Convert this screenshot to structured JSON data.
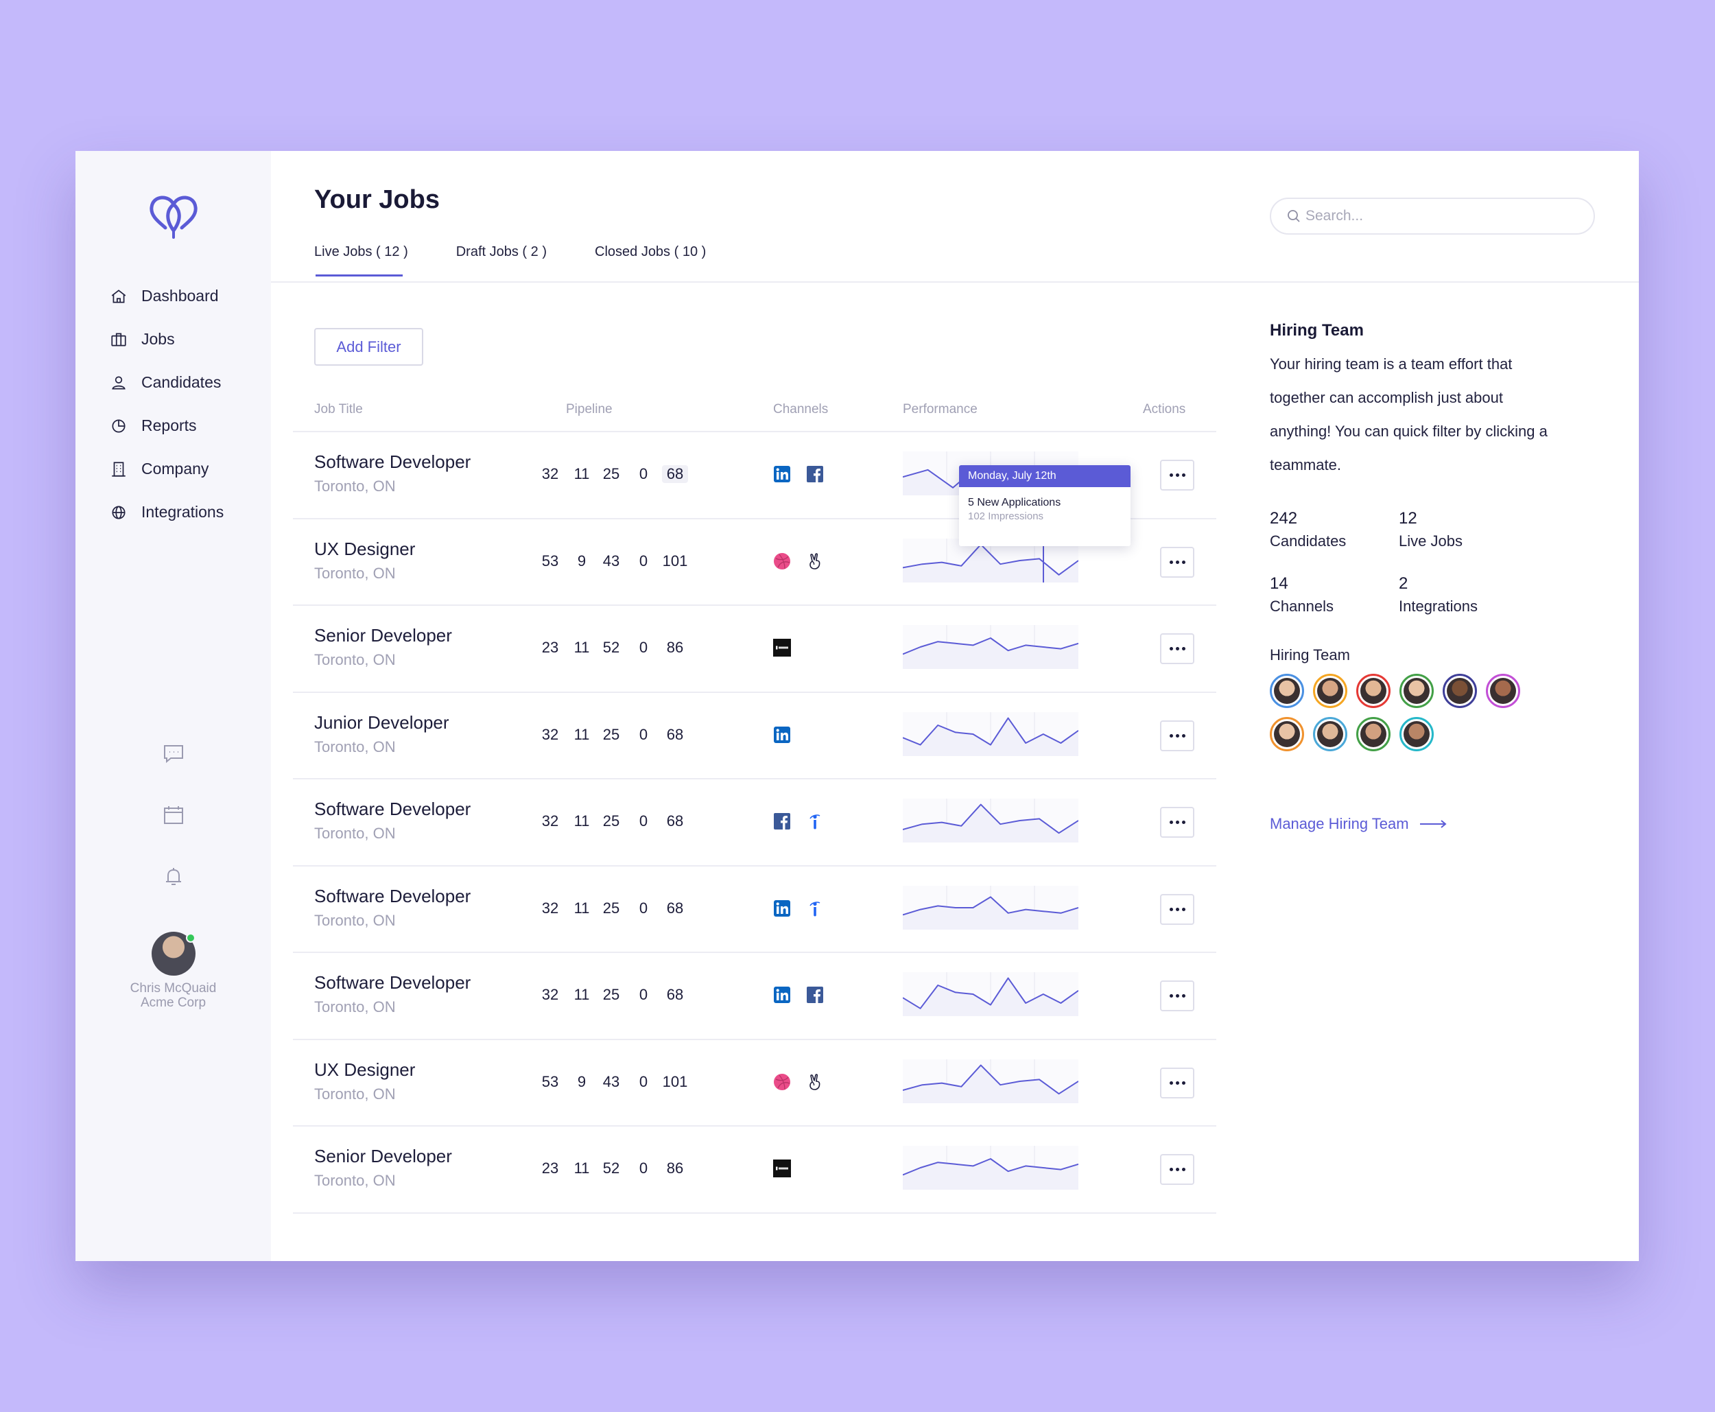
{
  "sidebar": {
    "nav": [
      {
        "label": "Dashboard",
        "icon": "home-icon"
      },
      {
        "label": "Jobs",
        "icon": "briefcase-icon"
      },
      {
        "label": "Candidates",
        "icon": "user-icon"
      },
      {
        "label": "Reports",
        "icon": "pie-chart-icon"
      },
      {
        "label": "Company",
        "icon": "building-icon"
      },
      {
        "label": "Integrations",
        "icon": "globe-icon"
      }
    ],
    "utility_icons": [
      "chat-icon",
      "calendar-icon",
      "bell-icon"
    ],
    "user": {
      "name": "Chris McQuaid",
      "org": "Acme Corp",
      "status": "online"
    }
  },
  "header": {
    "title": "Your Jobs",
    "tabs": [
      {
        "label": "Live Jobs ( 12 )",
        "active": true
      },
      {
        "label": "Draft Jobs ( 2 )",
        "active": false
      },
      {
        "label": "Closed Jobs ( 10 )",
        "active": false
      }
    ],
    "search": {
      "placeholder": "Search...",
      "value": ""
    }
  },
  "toolbar": {
    "add_filter_label": "Add Filter"
  },
  "table": {
    "columns": [
      "Job Title",
      "Pipeline",
      "Channels",
      "Performance",
      "Actions"
    ],
    "rows": [
      {
        "title": "Software Developer",
        "location": "Toronto, ON",
        "pipeline": [
          "32",
          "11",
          "25",
          "0",
          "68"
        ],
        "highlight_last": true,
        "channels": [
          "linkedin",
          "facebook"
        ],
        "spark": [
          12,
          8,
          18,
          6,
          10,
          9,
          7,
          14
        ]
      },
      {
        "title": "UX Designer",
        "location": "Toronto, ON",
        "pipeline": [
          "53",
          "9",
          "43",
          "0",
          "101"
        ],
        "highlight_last": false,
        "channels": [
          "dribbble",
          "angellist"
        ],
        "spark": [
          14,
          12,
          11,
          13,
          1,
          12,
          10,
          9,
          18,
          10
        ]
      },
      {
        "title": "Senior Developer",
        "location": "Toronto, ON",
        "pipeline": [
          "23",
          "11",
          "52",
          "0",
          "86"
        ],
        "highlight_last": false,
        "channels": [
          "ajok"
        ],
        "spark": [
          14,
          10,
          7,
          8,
          9,
          5,
          12,
          9,
          10,
          11,
          8
        ]
      },
      {
        "title": "Junior Developer",
        "location": "Toronto, ON",
        "pipeline": [
          "32",
          "11",
          "25",
          "0",
          "68"
        ],
        "highlight_last": false,
        "channels": [
          "linkedin"
        ],
        "spark": [
          12,
          16,
          5,
          9,
          10,
          16,
          1,
          15,
          10,
          15,
          8
        ]
      },
      {
        "title": "Software Developer",
        "location": "Toronto, ON",
        "pipeline": [
          "32",
          "11",
          "25",
          "0",
          "68"
        ],
        "highlight_last": false,
        "channels": [
          "facebook",
          "indeed"
        ],
        "spark": [
          15,
          12,
          11,
          13,
          1,
          12,
          10,
          9,
          17,
          10
        ]
      },
      {
        "title": "Software Developer",
        "location": "Toronto, ON",
        "pipeline": [
          "32",
          "11",
          "25",
          "0",
          "68"
        ],
        "highlight_last": false,
        "channels": [
          "linkedin",
          "indeed"
        ],
        "spark": [
          14,
          11,
          9,
          10,
          10,
          4,
          13,
          11,
          12,
          13,
          10
        ]
      },
      {
        "title": "Software Developer",
        "location": "Toronto, ON",
        "pipeline": [
          "32",
          "11",
          "25",
          "0",
          "68"
        ],
        "highlight_last": false,
        "channels": [
          "linkedin",
          "facebook"
        ],
        "spark": [
          12,
          18,
          5,
          9,
          10,
          16,
          1,
          15,
          10,
          15,
          8
        ]
      },
      {
        "title": "UX Designer",
        "location": "Toronto, ON",
        "pipeline": [
          "53",
          "9",
          "43",
          "0",
          "101"
        ],
        "highlight_last": false,
        "channels": [
          "dribbble",
          "angellist"
        ],
        "spark": [
          15,
          12,
          11,
          13,
          1,
          12,
          10,
          9,
          17,
          10
        ]
      },
      {
        "title": "Senior Developer",
        "location": "Toronto, ON",
        "pipeline": [
          "23",
          "11",
          "52",
          "0",
          "86"
        ],
        "highlight_last": false,
        "channels": [
          "ajok"
        ],
        "spark": [
          14,
          10,
          7,
          8,
          9,
          5,
          12,
          9,
          10,
          11,
          8
        ]
      }
    ]
  },
  "tooltip": {
    "date": "Monday, July 12th",
    "main": "5 New Applications",
    "sub": "102 Impressions"
  },
  "right_panel": {
    "title": "Hiring Team",
    "description": "Your hiring team is a team effort that together can accomplish just about anything! You can quick filter by clicking a teammate.",
    "stats": [
      {
        "value": "242",
        "label": "Candidates"
      },
      {
        "value": "12",
        "label": "Live Jobs"
      },
      {
        "value": "14",
        "label": "Channels"
      },
      {
        "value": "2",
        "label": "Integrations"
      }
    ],
    "team_label": "Hiring Team",
    "team_rings": [
      "#4a90e2",
      "#f5a623",
      "#e53935",
      "#43a047",
      "#3f3f99",
      "#c24fd6",
      "#f0922e",
      "#4aa8d8",
      "#43a047",
      "#26b8c9"
    ],
    "manage_label": "Manage Hiring Team"
  },
  "colors": {
    "accent": "#5b5bd6",
    "background": "#c4b9fb",
    "sidebar": "#f6f6fb"
  }
}
